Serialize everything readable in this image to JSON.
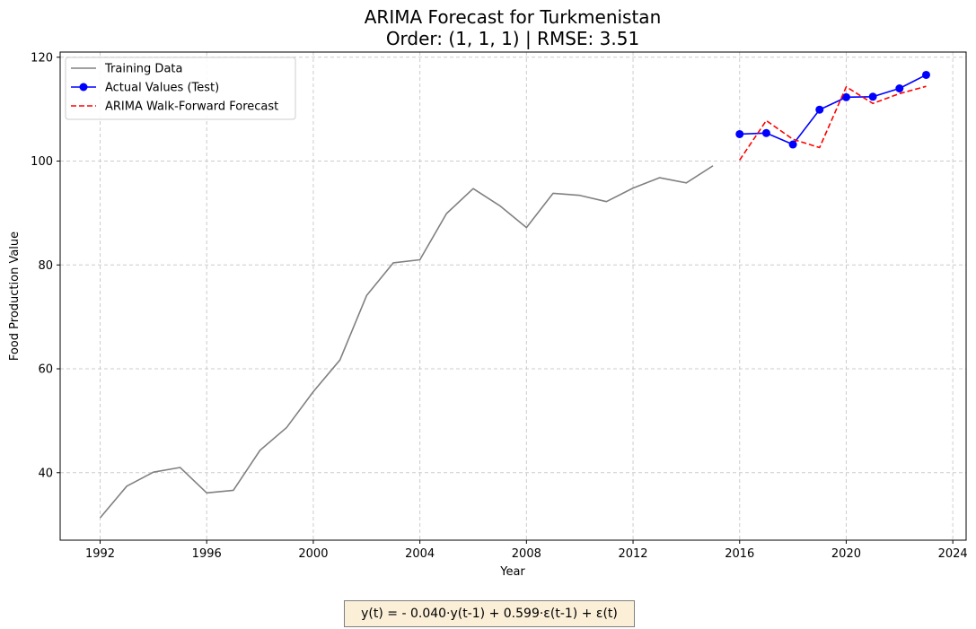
{
  "chart_data": {
    "type": "line",
    "title": "ARIMA Forecast for Turkmenistan",
    "subtitle": "Order: (1, 1, 1) | RMSE: 3.51",
    "xlabel": "Year",
    "ylabel": "Food Production Value",
    "xlim": [
      1990.5,
      2024.5
    ],
    "ylim": [
      27,
      121
    ],
    "x_ticks": [
      "1992",
      "1996",
      "2000",
      "2004",
      "2008",
      "2012",
      "2016",
      "2020",
      "2024"
    ],
    "y_ticks": [
      "40",
      "60",
      "80",
      "100",
      "120"
    ],
    "grid": true,
    "legend_position": "top-left",
    "series": [
      {
        "name": "Training Data",
        "color": "#808080",
        "style": "solid",
        "marker": "none",
        "x": [
          1992,
          1993,
          1994,
          1995,
          1996,
          1997,
          1998,
          1999,
          2000,
          2001,
          2002,
          2003,
          2004,
          2005,
          2006,
          2007,
          2008,
          2009,
          2010,
          2011,
          2012,
          2013,
          2014,
          2015
        ],
        "y": [
          31.3,
          37.4,
          40.1,
          41.0,
          36.1,
          36.6,
          44.3,
          48.7,
          55.6,
          61.7,
          74.1,
          80.4,
          81.0,
          89.9,
          94.7,
          91.4,
          87.2,
          93.8,
          93.4,
          92.2,
          94.8,
          96.8,
          95.8,
          99.1
        ]
      },
      {
        "name": "Actual Values (Test)",
        "color": "#0000ff",
        "style": "solid",
        "marker": "circle",
        "x": [
          2016,
          2017,
          2018,
          2019,
          2020,
          2021,
          2022,
          2023
        ],
        "y": [
          105.2,
          105.4,
          103.2,
          109.9,
          112.3,
          112.4,
          114.0,
          116.6
        ]
      },
      {
        "name": "ARIMA Walk-Forward Forecast",
        "color": "#ff0000",
        "style": "dashed",
        "marker": "none",
        "x": [
          2016,
          2017,
          2018,
          2019,
          2020,
          2021,
          2022,
          2023
        ],
        "y": [
          100.2,
          107.8,
          104.2,
          102.6,
          114.3,
          111.1,
          113.0,
          114.4
        ]
      }
    ],
    "annotation": "y(t) = - 0.040·y(t-1) + 0.599·ε(t-1) + ε(t)"
  }
}
